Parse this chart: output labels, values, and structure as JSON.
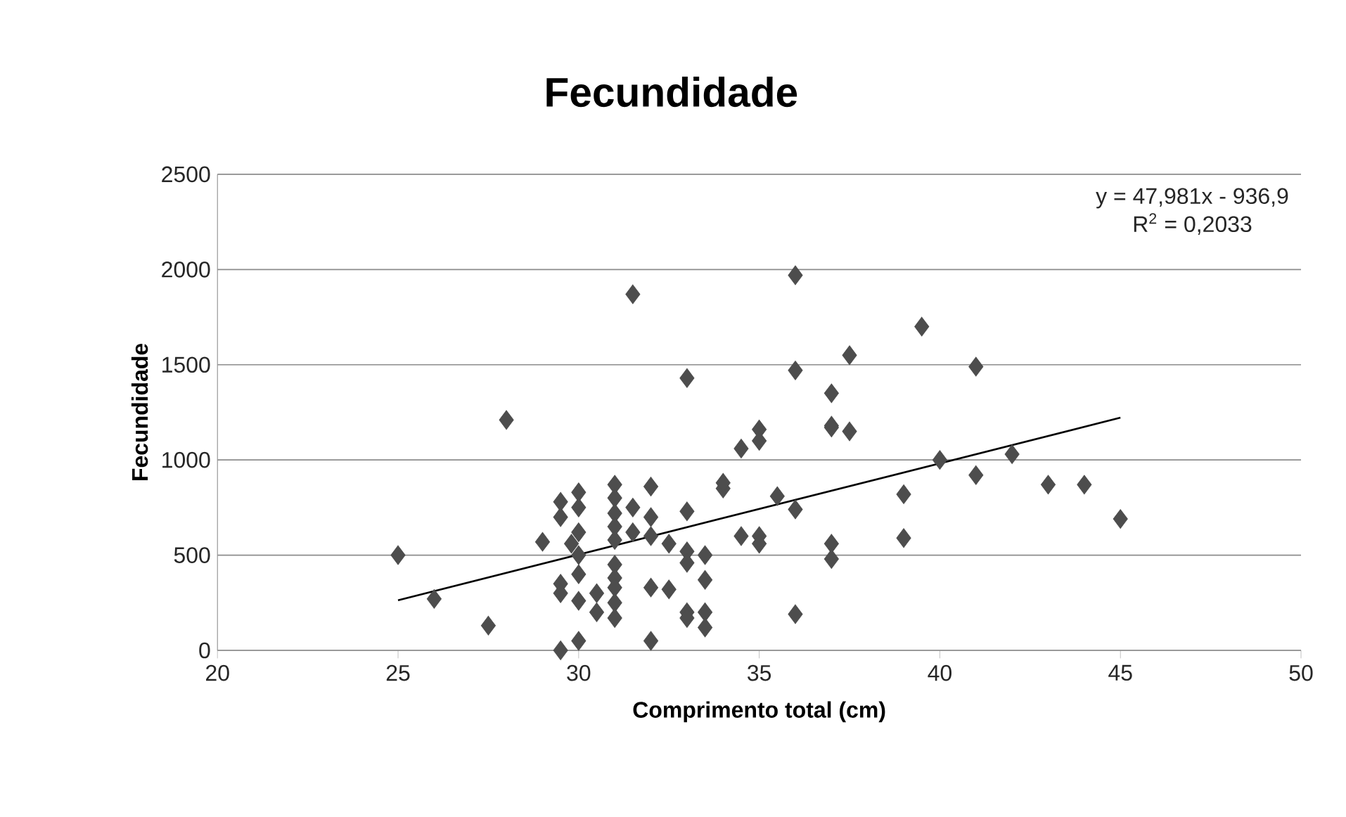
{
  "chart_data": {
    "type": "scatter",
    "title": "Fecundidade",
    "xlabel": "Comprimento total (cm)",
    "ylabel": "Fecundidade",
    "xlim": [
      20,
      50
    ],
    "xticks": [
      20,
      25,
      30,
      35,
      40,
      45,
      50
    ],
    "ylim": [
      0,
      2500
    ],
    "yticks": [
      0,
      500,
      1000,
      1500,
      2000,
      2500
    ],
    "grid": "y",
    "annotations": [
      "y = 47,981x - 936,9",
      "R$^{2}$ = 0,2033"
    ],
    "series": [
      {
        "color": "#4d4d4d",
        "marker": "diamond",
        "x": [
          25,
          26,
          27.5,
          28,
          29,
          29.5,
          29.5,
          29.5,
          29.5,
          29.5,
          30,
          30,
          30,
          30,
          30,
          30,
          30,
          29.8,
          30.5,
          30.5,
          31,
          31,
          31,
          31,
          31,
          31,
          31,
          31,
          31,
          31,
          31.5,
          31.5,
          31.5,
          32,
          32,
          32,
          32,
          32,
          32.5,
          32.5,
          33,
          33,
          33,
          33,
          33,
          33,
          33.5,
          33.5,
          33.5,
          33.5,
          34,
          34,
          34.5,
          34.5,
          35,
          35,
          35,
          35,
          35.5,
          36,
          36,
          36,
          36,
          37,
          37,
          37,
          37,
          37,
          37.5,
          37.5,
          39,
          39,
          39.5,
          40,
          41,
          41,
          42,
          43,
          44,
          45
        ],
        "values": [
          500,
          270,
          130,
          1210,
          570,
          780,
          700,
          350,
          300,
          0,
          830,
          750,
          620,
          500,
          400,
          260,
          50,
          560,
          300,
          200,
          870,
          800,
          720,
          650,
          580,
          450,
          380,
          330,
          250,
          170,
          1870,
          750,
          620,
          860,
          700,
          600,
          330,
          50,
          320,
          560,
          1430,
          730,
          520,
          460,
          200,
          170,
          500,
          370,
          200,
          120,
          850,
          880,
          1060,
          600,
          1160,
          1100,
          600,
          560,
          810,
          1970,
          1470,
          740,
          190,
          1350,
          1180,
          1170,
          560,
          480,
          1550,
          1150,
          820,
          590,
          1700,
          1000,
          1490,
          920,
          1030,
          870,
          870,
          690
        ]
      },
      {
        "type": "line",
        "marker": "none",
        "color": "#000000",
        "x": [
          25,
          45
        ],
        "values": [
          263,
          1222
        ]
      }
    ]
  }
}
